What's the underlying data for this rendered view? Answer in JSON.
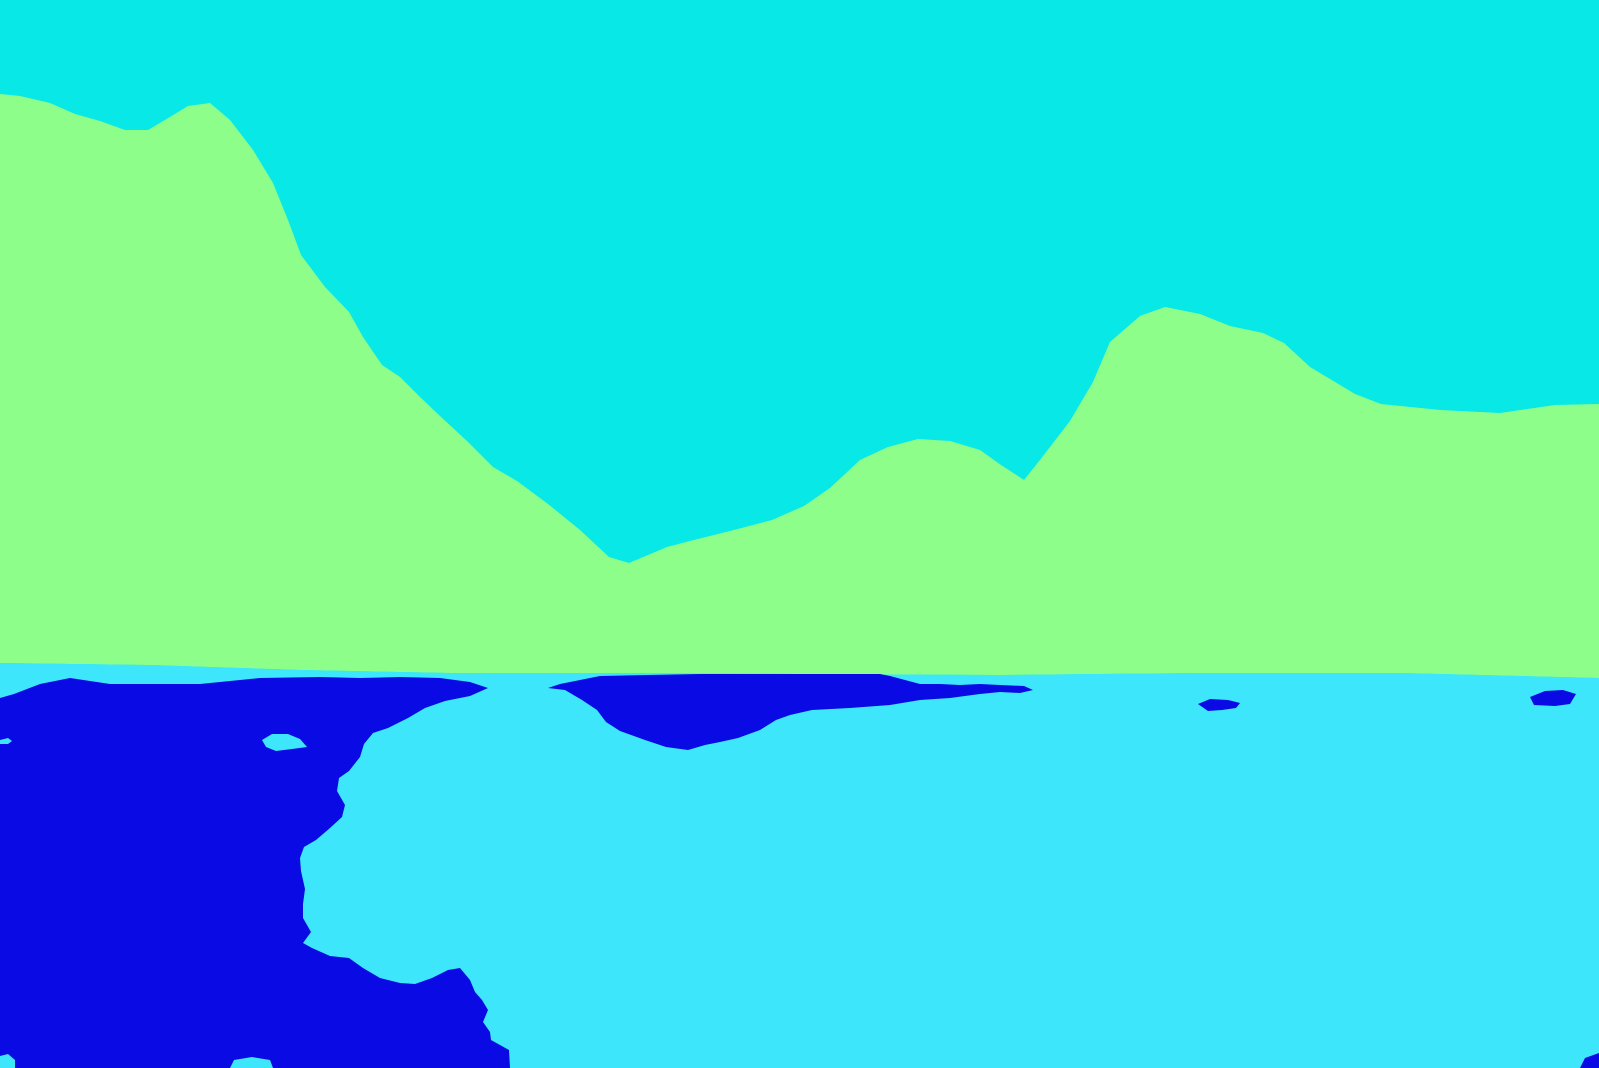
{
  "image": {
    "kind": "segmentation-map",
    "regions": [
      {
        "name": "sky",
        "color": "#08E8E6"
      },
      {
        "name": "mountain",
        "color": "#8EFE8A"
      },
      {
        "name": "water",
        "color": "#3EE6FC"
      },
      {
        "name": "dark-water-region",
        "color": "#0A0AE4"
      }
    ]
  }
}
